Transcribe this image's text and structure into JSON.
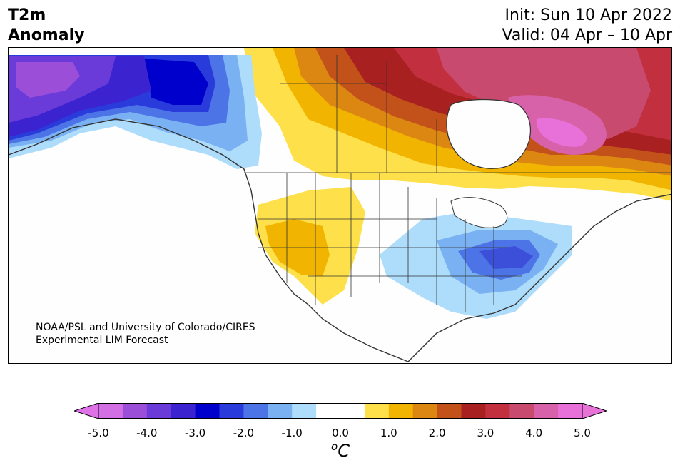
{
  "title": {
    "line1": "T2m",
    "line2": "Anomaly"
  },
  "dates": {
    "init": "Init: Sun 10 Apr 2022",
    "valid": "Valid: 04 Apr – 10 Apr"
  },
  "credit": {
    "line1": "NOAA/PSL and University of Colorado/CIRES",
    "line2": "Experimental LIM Forecast"
  },
  "colorbar": {
    "tick_labels": [
      "-5.0",
      "-4.0",
      "-3.0",
      "-2.0",
      "-1.0",
      "0.0",
      "1.0",
      "2.0",
      "3.0",
      "4.0",
      "5.0"
    ],
    "unit_sup": "o",
    "unit": "C",
    "colors": [
      "#d36fe5",
      "#9b4fd9",
      "#6a3bd9",
      "#3b24cf",
      "#0000cc",
      "#2a3bdc",
      "#4d74e6",
      "#79b1f2",
      "#aedcfb",
      "#ffffff",
      "#ffffff",
      "#fde04a",
      "#f1b400",
      "#dd8713",
      "#c25219",
      "#a8201f",
      "#c2303f",
      "#c94a6f",
      "#d862a9",
      "#e771d8"
    ],
    "under_color": "#e072e8",
    "over_color": "#e772d8"
  }
}
